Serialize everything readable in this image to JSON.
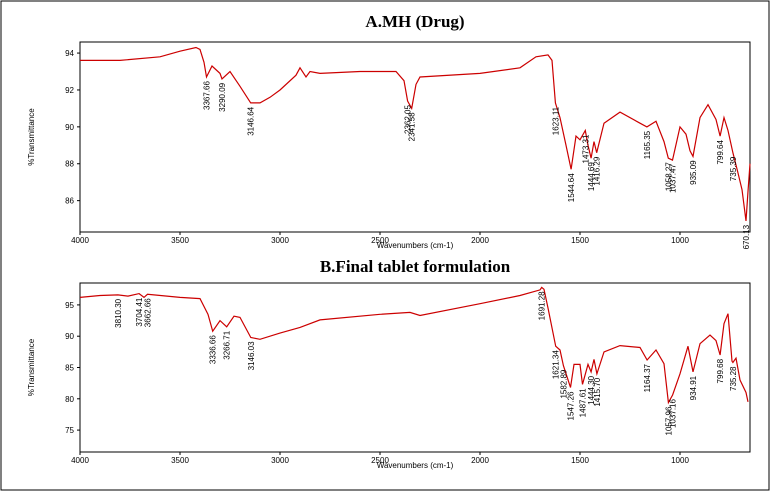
{
  "chart_data": [
    {
      "type": "line",
      "title": "A.MH (Drug)",
      "x_label": "Wavenumbers (cm-1)",
      "y_label": "%Transmittance",
      "xlim": [
        4000,
        650
      ],
      "xticks": [
        4000,
        3500,
        3000,
        2500,
        2000,
        1500,
        1000
      ],
      "ylim": [
        84.3,
        94.6
      ],
      "yticks": [
        86,
        88,
        90,
        92,
        94
      ],
      "series": [
        {
          "color": "#cc0000",
          "x": [
            4000,
            3800,
            3600,
            3500,
            3420,
            3400,
            3380,
            3367.66,
            3340,
            3300,
            3290.09,
            3250,
            3200,
            3146.64,
            3100,
            3050,
            3000,
            2920,
            2900,
            2870,
            2850,
            2800,
            2600,
            2420,
            2380,
            2362.05,
            2341.58,
            2320,
            2300,
            2000,
            1800,
            1720,
            1660,
            1640,
            1623.11,
            1600,
            1570,
            1544.64,
            1520,
            1500,
            1473.31,
            1460,
            1444.69,
            1430,
            1416.29,
            1380,
            1300,
            1200,
            1165.35,
            1120,
            1080,
            1058.27,
            1037.47,
            1000,
            970,
            950,
            935.09,
            900,
            860,
            820,
            799.64,
            780,
            760,
            735.39,
            710,
            690,
            670.13,
            660,
            650
          ],
          "values": [
            93.6,
            93.6,
            93.8,
            94.1,
            94.3,
            94.2,
            93.5,
            92.7,
            93.3,
            92.9,
            92.6,
            93.0,
            92.2,
            91.3,
            91.3,
            91.6,
            92.0,
            92.8,
            93.2,
            92.7,
            93.0,
            92.9,
            93.0,
            93.0,
            92.5,
            91.4,
            91.0,
            92.3,
            92.7,
            92.9,
            93.2,
            93.8,
            93.9,
            93.6,
            91.3,
            90.5,
            89.0,
            87.7,
            89.5,
            89.3,
            89.8,
            89.0,
            88.3,
            89.2,
            88.6,
            90.2,
            90.8,
            90.2,
            90.0,
            90.3,
            89.2,
            88.3,
            88.2,
            90.0,
            89.6,
            88.7,
            88.4,
            90.5,
            91.2,
            90.4,
            89.5,
            90.5,
            89.8,
            88.6,
            87.5,
            86.6,
            84.9,
            86.5,
            88.0
          ]
        }
      ],
      "peaks": [
        3367.66,
        3290.09,
        3146.64,
        2362.05,
        2341.58,
        1623.11,
        1544.64,
        1473.31,
        1444.69,
        1416.29,
        1165.35,
        1058.27,
        1037.47,
        935.09,
        799.64,
        735.39,
        670.13
      ]
    },
    {
      "type": "line",
      "title": "B.Final tablet formulation",
      "x_label": "Wavenumbers (cm-1)",
      "y_label": "%Transmittance",
      "xlim": [
        4000,
        650
      ],
      "xticks": [
        4000,
        3500,
        3000,
        2500,
        2000,
        1500,
        1000
      ],
      "ylim": [
        71.5,
        98.5
      ],
      "yticks": [
        75,
        80,
        85,
        90,
        95
      ],
      "series": [
        {
          "color": "#cc0000",
          "x": [
            4000,
            3900,
            3810.3,
            3760,
            3704.41,
            3680,
            3662.66,
            3500,
            3400,
            3360,
            3336.66,
            3300,
            3266.71,
            3230,
            3200,
            3146.03,
            3100,
            3000,
            2900,
            2800,
            2500,
            2350,
            2300,
            2000,
            1800,
            1700,
            1691.28,
            1680,
            1660,
            1621.34,
            1600,
            1582.89,
            1547.26,
            1530,
            1500,
            1487.61,
            1460,
            1444.3,
            1430,
            1415.7,
            1380,
            1300,
            1200,
            1164.37,
            1120,
            1080,
            1057.96,
            1037.16,
            1000,
            960,
            934.91,
            900,
            850,
            820,
            799.68,
            780,
            760,
            740,
            735.28,
            720,
            700,
            670,
            660
          ],
          "values": [
            96.2,
            96.5,
            96.6,
            96.4,
            96.8,
            96.2,
            96.7,
            96.2,
            96.0,
            93.5,
            90.8,
            92.5,
            91.5,
            93.2,
            93.0,
            89.8,
            89.5,
            90.5,
            91.4,
            92.6,
            93.5,
            93.8,
            93.3,
            95.2,
            96.5,
            97.4,
            97.8,
            97.5,
            94.5,
            88.4,
            87.8,
            85.3,
            81.8,
            85.5,
            85.5,
            82.3,
            85.5,
            84.3,
            86.3,
            84.0,
            87.5,
            88.5,
            88.2,
            86.2,
            87.8,
            85.6,
            79.4,
            80.6,
            84.0,
            88.4,
            84.3,
            88.8,
            90.2,
            89.3,
            87.0,
            92.0,
            93.6,
            86.0,
            85.8,
            86.5,
            83.0,
            81.0,
            79.5
          ]
        }
      ],
      "peaks": [
        {
          "value": 3810.3,
          "label": "3810.30"
        },
        3704.41,
        3662.66,
        3336.66,
        3266.71,
        3146.03,
        1691.28,
        1621.34,
        1582.89,
        1547.26,
        1487.61,
        {
          "value": 1444.3,
          "label": "1444.30"
        },
        {
          "value": 1415.7,
          "label": "1415.70"
        },
        1164.37,
        1057.96,
        1037.16,
        934.91,
        799.68,
        735.28
      ]
    }
  ]
}
